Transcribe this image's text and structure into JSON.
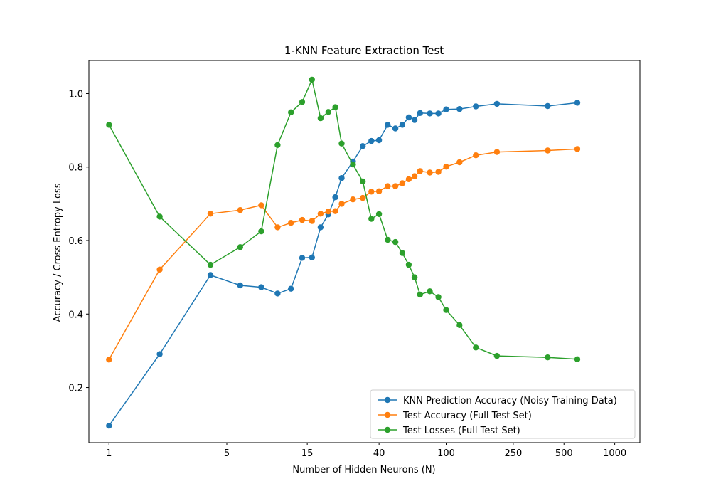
{
  "chart_data": {
    "type": "line",
    "title": "1-KNN Feature Extraction Test",
    "xlabel": "Number of Hidden Neurons (N)",
    "ylabel": "Accuracy / Cross Entropy Loss",
    "xscale": "log",
    "xlim": [
      0.76,
      1410
    ],
    "ylim": [
      0.05,
      1.09
    ],
    "x_ticks": [
      1,
      5,
      15,
      40,
      100,
      250,
      500,
      1000
    ],
    "y_ticks": [
      0.2,
      0.4,
      0.6,
      0.8,
      1.0
    ],
    "grid": false,
    "legend_position": "lower-right",
    "x": [
      1,
      2,
      4,
      6,
      8,
      10,
      12,
      14,
      16,
      18,
      20,
      22,
      24,
      28,
      32,
      36,
      40,
      45,
      50,
      55,
      60,
      65,
      70,
      80,
      90,
      100,
      120,
      150,
      200,
      400,
      600,
      800,
      1000
    ],
    "series": [
      {
        "name": "KNN Prediction Accuracy (Noisy Training Data)",
        "color": "#1f77b4",
        "values": [
          0.096,
          0.291,
          0.506,
          0.478,
          0.473,
          0.456,
          0.469,
          0.553,
          0.554,
          0.636,
          0.671,
          0.718,
          0.77,
          0.815,
          0.857,
          0.871,
          0.873,
          0.915,
          0.905,
          0.915,
          0.935,
          0.928,
          0.947,
          0.946,
          0.946,
          0.957,
          0.958,
          0.965,
          0.972,
          0.966,
          0.975,
          null,
          null
        ]
      },
      {
        "name": "Test Accuracy (Full Test Set)",
        "color": "#ff7f0e",
        "values": [
          0.276,
          0.521,
          0.673,
          0.683,
          0.696,
          0.636,
          0.648,
          0.656,
          0.653,
          0.673,
          0.679,
          0.68,
          0.7,
          0.712,
          0.716,
          0.733,
          0.734,
          0.748,
          0.748,
          0.756,
          0.767,
          0.775,
          0.789,
          0.785,
          0.787,
          0.801,
          0.813,
          0.832,
          0.841,
          0.845,
          0.849,
          null,
          null
        ]
      },
      {
        "name": "Test Losses (Full Test Set)",
        "color": "#2ca02c",
        "values": [
          0.915,
          0.665,
          0.534,
          0.582,
          0.625,
          0.86,
          0.949,
          0.977,
          1.038,
          0.933,
          0.95,
          0.963,
          0.864,
          0.807,
          0.761,
          0.659,
          0.672,
          0.602,
          0.596,
          0.566,
          0.534,
          0.5,
          0.453,
          0.462,
          0.446,
          0.411,
          0.37,
          0.309,
          0.286,
          0.282,
          0.277,
          null,
          null
        ]
      }
    ]
  }
}
